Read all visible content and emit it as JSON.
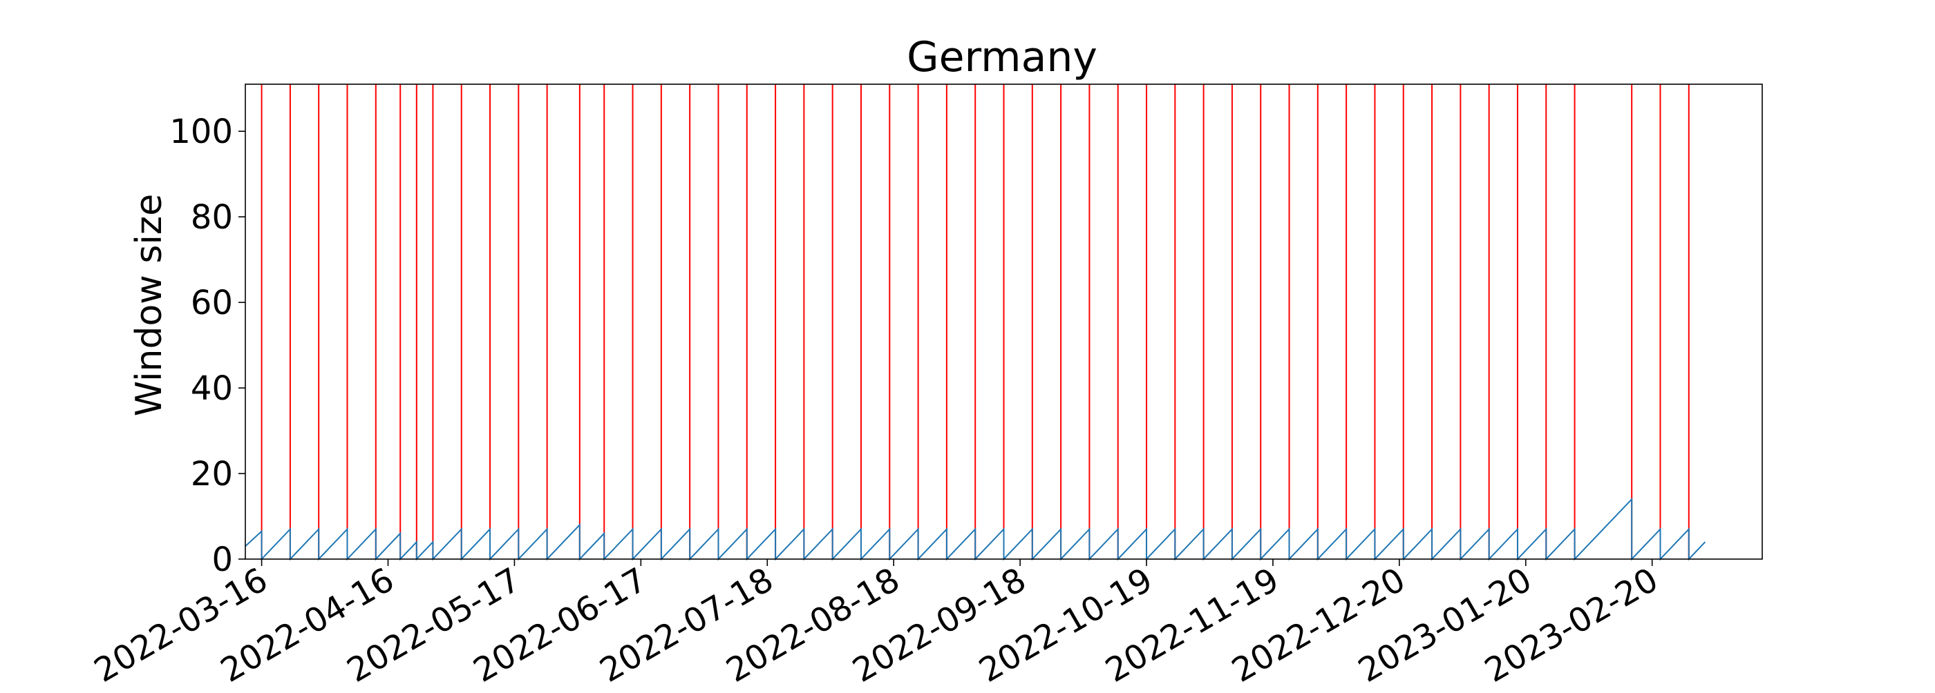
{
  "chart_data": {
    "type": "line",
    "title": "Germany",
    "xlabel": "",
    "ylabel": "Window size",
    "x_tick_labels": [
      "2022-03-16",
      "2022-04-16",
      "2022-05-17",
      "2022-06-17",
      "2022-07-18",
      "2022-08-18",
      "2022-09-18",
      "2022-10-19",
      "2022-11-19",
      "2022-12-20",
      "2023-01-20",
      "2023-02-20"
    ],
    "y_tick_labels": [
      "0",
      "20",
      "40",
      "60",
      "80",
      "100"
    ],
    "xlim": [
      "2022-03-12",
      "2023-03-19"
    ],
    "ylim": [
      0,
      111
    ],
    "grid": false,
    "series": [
      {
        "color": "#1f77b4",
        "points": [
          [
            "2022-03-12",
            3
          ],
          [
            "2022-03-16",
            6.5
          ],
          [
            "2022-03-16",
            0
          ],
          [
            "2022-03-23",
            7
          ],
          [
            "2022-03-23",
            0
          ],
          [
            "2022-03-30",
            7
          ],
          [
            "2022-03-30",
            0
          ],
          [
            "2022-04-06",
            7
          ],
          [
            "2022-04-06",
            0
          ],
          [
            "2022-04-13",
            7
          ],
          [
            "2022-04-13",
            0
          ],
          [
            "2022-04-19",
            6
          ],
          [
            "2022-04-19",
            0
          ],
          [
            "2022-04-23",
            4
          ],
          [
            "2022-04-23",
            0
          ],
          [
            "2022-04-27",
            4
          ],
          [
            "2022-04-27",
            0
          ],
          [
            "2022-05-04",
            7
          ],
          [
            "2022-05-04",
            0
          ],
          [
            "2022-05-11",
            7
          ],
          [
            "2022-05-11",
            0
          ],
          [
            "2022-05-18",
            7
          ],
          [
            "2022-05-18",
            0
          ],
          [
            "2022-05-25",
            7
          ],
          [
            "2022-05-25",
            0
          ],
          [
            "2022-06-02",
            8
          ],
          [
            "2022-06-02",
            0
          ],
          [
            "2022-06-08",
            6
          ],
          [
            "2022-06-08",
            0
          ],
          [
            "2022-06-15",
            7
          ],
          [
            "2022-06-15",
            0
          ],
          [
            "2022-06-22",
            7
          ],
          [
            "2022-06-22",
            0
          ],
          [
            "2022-06-29",
            7
          ],
          [
            "2022-06-29",
            0
          ],
          [
            "2022-07-06",
            7
          ],
          [
            "2022-07-06",
            0
          ],
          [
            "2022-07-13",
            7
          ],
          [
            "2022-07-13",
            0
          ],
          [
            "2022-07-20",
            7
          ],
          [
            "2022-07-20",
            0
          ],
          [
            "2022-07-27",
            7
          ],
          [
            "2022-07-27",
            0
          ],
          [
            "2022-08-03",
            7
          ],
          [
            "2022-08-03",
            0
          ],
          [
            "2022-08-10",
            7
          ],
          [
            "2022-08-10",
            0
          ],
          [
            "2022-08-17",
            7
          ],
          [
            "2022-08-17",
            0
          ],
          [
            "2022-08-24",
            7
          ],
          [
            "2022-08-24",
            0
          ],
          [
            "2022-08-31",
            7
          ],
          [
            "2022-08-31",
            0
          ],
          [
            "2022-09-07",
            7
          ],
          [
            "2022-09-07",
            0
          ],
          [
            "2022-09-14",
            7
          ],
          [
            "2022-09-14",
            0
          ],
          [
            "2022-09-21",
            7
          ],
          [
            "2022-09-21",
            0
          ],
          [
            "2022-09-28",
            7
          ],
          [
            "2022-09-28",
            0
          ],
          [
            "2022-10-05",
            7
          ],
          [
            "2022-10-05",
            0
          ],
          [
            "2022-10-12",
            7
          ],
          [
            "2022-10-12",
            0
          ],
          [
            "2022-10-19",
            7
          ],
          [
            "2022-10-19",
            0
          ],
          [
            "2022-10-26",
            7
          ],
          [
            "2022-10-26",
            0
          ],
          [
            "2022-11-02",
            7
          ],
          [
            "2022-11-02",
            0
          ],
          [
            "2022-11-09",
            7
          ],
          [
            "2022-11-09",
            0
          ],
          [
            "2022-11-16",
            7
          ],
          [
            "2022-11-16",
            0
          ],
          [
            "2022-11-23",
            7
          ],
          [
            "2022-11-23",
            0
          ],
          [
            "2022-11-30",
            7
          ],
          [
            "2022-11-30",
            0
          ],
          [
            "2022-12-07",
            7
          ],
          [
            "2022-12-07",
            0
          ],
          [
            "2022-12-14",
            7
          ],
          [
            "2022-12-14",
            0
          ],
          [
            "2022-12-21",
            7
          ],
          [
            "2022-12-21",
            0
          ],
          [
            "2022-12-28",
            7
          ],
          [
            "2022-12-28",
            0
          ],
          [
            "2023-01-04",
            7
          ],
          [
            "2023-01-04",
            0
          ],
          [
            "2023-01-11",
            7
          ],
          [
            "2023-01-11",
            0
          ],
          [
            "2023-01-18",
            7
          ],
          [
            "2023-01-18",
            0
          ],
          [
            "2023-01-25",
            7
          ],
          [
            "2023-01-25",
            0
          ],
          [
            "2023-02-01",
            7
          ],
          [
            "2023-02-01",
            0
          ],
          [
            "2023-02-15",
            14
          ],
          [
            "2023-02-15",
            0
          ],
          [
            "2023-02-22",
            7
          ],
          [
            "2023-02-22",
            0
          ],
          [
            "2023-03-01",
            7
          ],
          [
            "2023-03-01",
            0
          ],
          [
            "2023-03-05",
            4
          ]
        ]
      }
    ],
    "vlines": {
      "color": "#ff0000",
      "dates": [
        "2022-03-16",
        "2022-03-23",
        "2022-03-30",
        "2022-04-06",
        "2022-04-13",
        "2022-04-19",
        "2022-04-23",
        "2022-04-27",
        "2022-05-04",
        "2022-05-11",
        "2022-05-18",
        "2022-05-25",
        "2022-06-02",
        "2022-06-08",
        "2022-06-15",
        "2022-06-22",
        "2022-06-29",
        "2022-07-06",
        "2022-07-13",
        "2022-07-20",
        "2022-07-27",
        "2022-08-03",
        "2022-08-10",
        "2022-08-17",
        "2022-08-24",
        "2022-08-31",
        "2022-09-07",
        "2022-09-14",
        "2022-09-21",
        "2022-09-28",
        "2022-10-05",
        "2022-10-12",
        "2022-10-19",
        "2022-10-26",
        "2022-11-02",
        "2022-11-09",
        "2022-11-16",
        "2022-11-23",
        "2022-11-30",
        "2022-12-07",
        "2022-12-14",
        "2022-12-21",
        "2022-12-28",
        "2023-01-04",
        "2023-01-11",
        "2023-01-18",
        "2023-01-25",
        "2023-02-01",
        "2023-02-15",
        "2023-02-22",
        "2023-03-01"
      ]
    }
  }
}
